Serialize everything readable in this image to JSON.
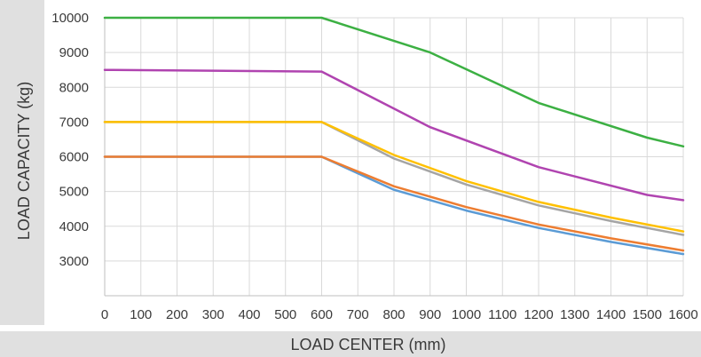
{
  "chart_data": {
    "type": "line",
    "title": "",
    "xlabel": "LOAD CENTER (mm)",
    "ylabel": "LOAD CAPACITY (kg)",
    "x": [
      0,
      100,
      200,
      300,
      400,
      500,
      600,
      700,
      800,
      900,
      1000,
      1100,
      1200,
      1300,
      1400,
      1500,
      1600
    ],
    "x_tick_labels": [
      "0",
      "100",
      "200",
      "300",
      "400",
      "500",
      "600",
      "700",
      "800",
      "900",
      "1000",
      "1100",
      "1200",
      "1300",
      "1400",
      "1500",
      "1600"
    ],
    "y_ticks": [
      3000,
      4000,
      5000,
      6000,
      7000,
      8000,
      9000,
      10000
    ],
    "y_tick_labels": [
      "3000",
      "4000",
      "5000",
      "6000",
      "7000",
      "8000",
      "9000",
      "10000"
    ],
    "xlim": [
      0,
      1600
    ],
    "ylim": [
      2000,
      10000
    ],
    "grid": true,
    "legend": "none",
    "series": [
      {
        "color": "#5b9bd5",
        "points": [
          [
            0,
            6000
          ],
          [
            600,
            6000
          ],
          [
            800,
            5050
          ],
          [
            1000,
            4450
          ],
          [
            1200,
            3950
          ],
          [
            1400,
            3550
          ],
          [
            1600,
            3200
          ]
        ]
      },
      {
        "color": "#ed7d31",
        "points": [
          [
            0,
            6000
          ],
          [
            600,
            6000
          ],
          [
            800,
            5150
          ],
          [
            1000,
            4550
          ],
          [
            1200,
            4050
          ],
          [
            1400,
            3650
          ],
          [
            1600,
            3300
          ]
        ]
      },
      {
        "color": "#a5a5a5",
        "points": [
          [
            0,
            7000
          ],
          [
            600,
            7000
          ],
          [
            800,
            5950
          ],
          [
            1000,
            5200
          ],
          [
            1200,
            4600
          ],
          [
            1400,
            4150
          ],
          [
            1600,
            3750
          ]
        ]
      },
      {
        "color": "#ffc000",
        "points": [
          [
            0,
            7000
          ],
          [
            600,
            7000
          ],
          [
            800,
            6050
          ],
          [
            1000,
            5300
          ],
          [
            1200,
            4700
          ],
          [
            1400,
            4250
          ],
          [
            1600,
            3850
          ]
        ]
      },
      {
        "color": "#b044b0",
        "points": [
          [
            0,
            8500
          ],
          [
            600,
            8450
          ],
          [
            900,
            6850
          ],
          [
            1200,
            5700
          ],
          [
            1500,
            4900
          ],
          [
            1600,
            4750
          ]
        ]
      },
      {
        "color": "#3cb043",
        "points": [
          [
            0,
            10000
          ],
          [
            600,
            10000
          ],
          [
            900,
            9000
          ],
          [
            1200,
            7550
          ],
          [
            1500,
            6550
          ],
          [
            1600,
            6300
          ]
        ]
      }
    ]
  }
}
